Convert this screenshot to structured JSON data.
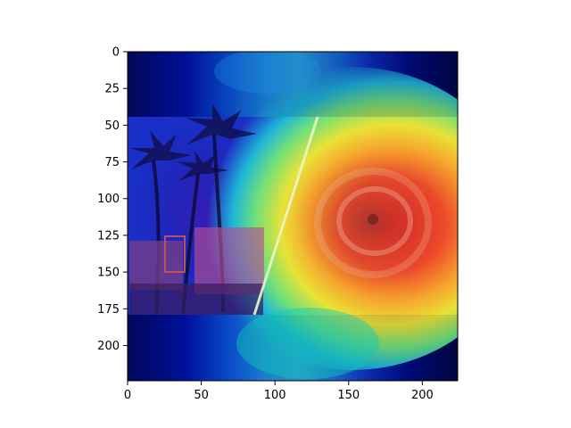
{
  "axes": {
    "xlim": [
      0,
      224
    ],
    "ylim": [
      224,
      0
    ],
    "x_ticks": [
      {
        "value": 0,
        "label": "0"
      },
      {
        "value": 50,
        "label": "50"
      },
      {
        "value": 100,
        "label": "100"
      },
      {
        "value": 150,
        "label": "150"
      },
      {
        "value": 200,
        "label": "200"
      }
    ],
    "y_ticks": [
      {
        "value": 0,
        "label": "0"
      },
      {
        "value": 25,
        "label": "25"
      },
      {
        "value": 50,
        "label": "50"
      },
      {
        "value": 75,
        "label": "75"
      },
      {
        "value": 100,
        "label": "100"
      },
      {
        "value": 125,
        "label": "125"
      },
      {
        "value": 150,
        "label": "150"
      },
      {
        "value": 175,
        "label": "175"
      },
      {
        "value": 200,
        "label": "200"
      }
    ]
  },
  "image": {
    "content": "photo-collage-palm-trees-and-hurricane-satellite-view",
    "overlay": "jet-colormap-attention-heatmap",
    "photo_band_y": [
      44,
      179
    ],
    "hot_region_center": [
      165,
      115
    ]
  },
  "colors": {
    "cold": "#00007f",
    "mid": "#00c8ff",
    "warm": "#ffd400",
    "hot": "#e8302a"
  }
}
